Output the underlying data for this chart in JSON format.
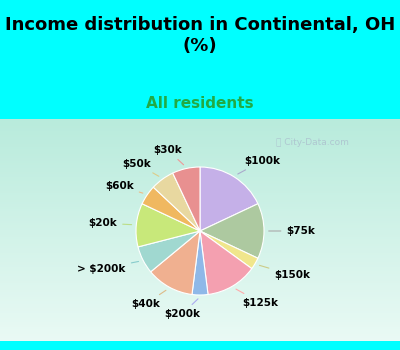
{
  "title": "Income distribution in Continental, OH\n(%)",
  "subtitle": "All residents",
  "background_color": "#00ffff",
  "watermark": "City-Data.com",
  "title_fontsize": 13,
  "subtitle_fontsize": 11,
  "subtitle_color": "#22aa44",
  "labels": [
    "$100k",
    "$75k",
    "$150k",
    "$125k",
    "$200k",
    "$40k",
    "> $200k",
    "$20k",
    "$60k",
    "$50k",
    "$30k"
  ],
  "values": [
    18,
    14,
    3,
    13,
    4,
    12,
    7,
    11,
    5,
    6,
    7
  ],
  "colors": [
    "#c5b0e8",
    "#adc9a0",
    "#f0e68c",
    "#f4a0b0",
    "#8fb8e8",
    "#f0b090",
    "#a0d8d0",
    "#c8e87a",
    "#f0b860",
    "#e8d8a0",
    "#e89090"
  ],
  "start_angle": 90,
  "label_fontsize": 7.5,
  "line_colors": {
    "$100k": "#aaaacc",
    "$75k": "#aaaaaa",
    "$150k": "#cccc88",
    "$125k": "#ffaaaa",
    "$200k": "#aaaaee",
    "$40k": "#ddbb88",
    "> $200k": "#88cccc",
    "$20k": "#bbdd88",
    "$60k": "#eebb88",
    "$50k": "#ddcc88",
    "$30k": "#ee9999"
  }
}
